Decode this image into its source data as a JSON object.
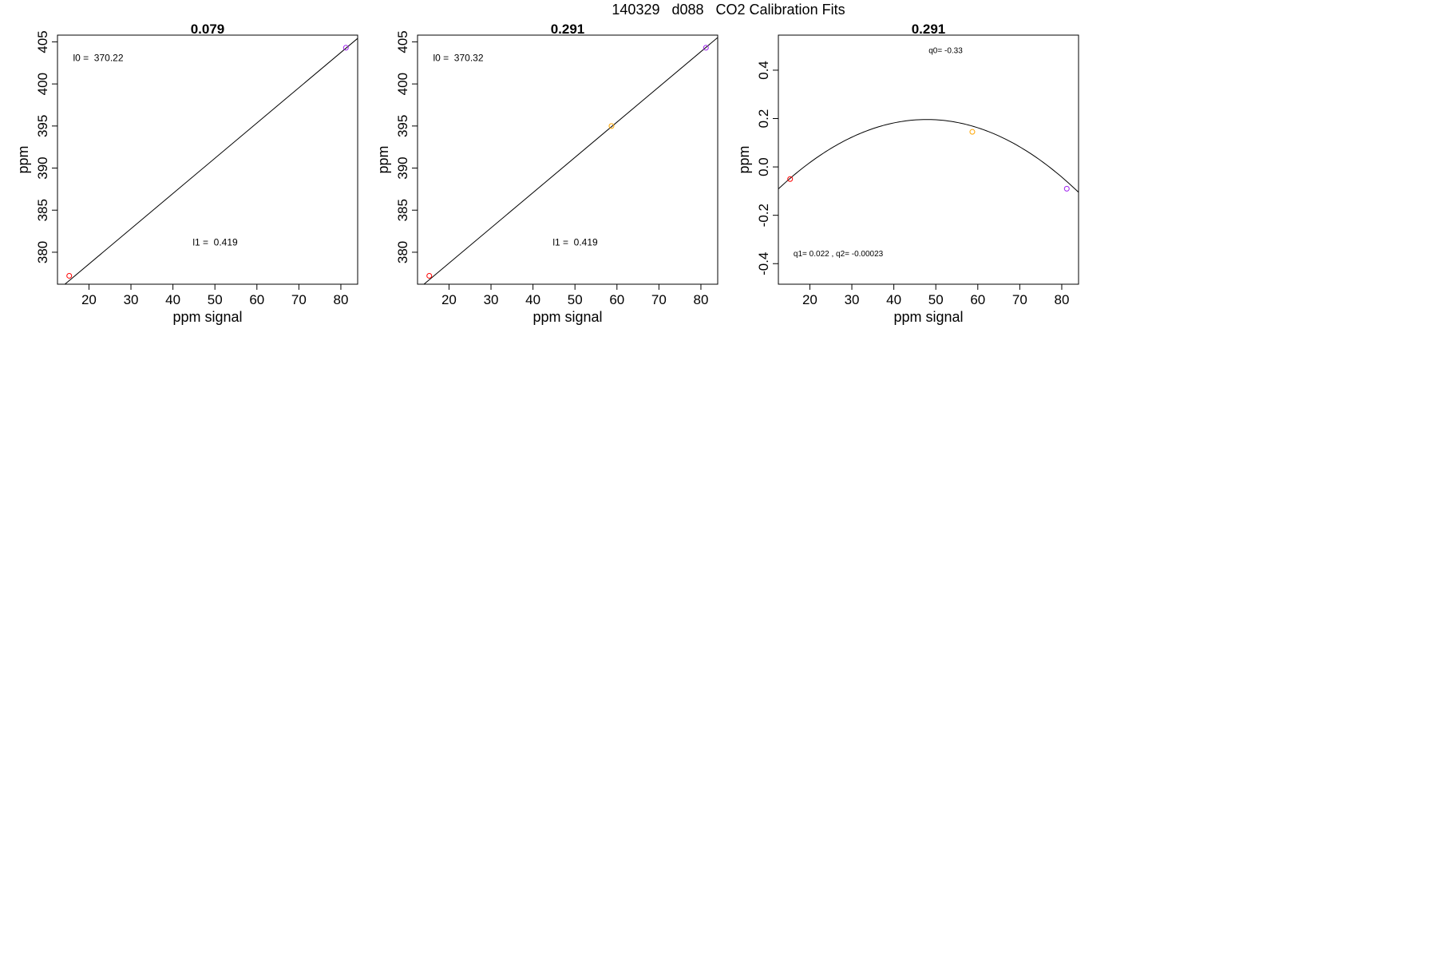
{
  "figure": {
    "title": "140329   d088   CO2 Calibration Fits"
  },
  "chart_data": [
    {
      "type": "line",
      "title": "0.079",
      "xlabel": "ppm signal",
      "ylabel": "ppm",
      "xlim": [
        12.5,
        84
      ],
      "ylim": [
        376.2,
        405.8
      ],
      "xticks": [
        20,
        30,
        40,
        50,
        60,
        70,
        80
      ],
      "yticks": [
        380,
        385,
        390,
        395,
        400,
        405
      ],
      "grid": false,
      "legend": "none",
      "fit": {
        "kind": "linear",
        "intercept": 370.22,
        "slope": 0.419
      },
      "series": [
        {
          "kind": "fit-line",
          "color": "#000000",
          "x": [
            12.5,
            84
          ]
        },
        {
          "kind": "points",
          "marker": "circle",
          "points": [
            {
              "x": 15.3,
              "y": 377.2,
              "color": "#ff0000"
            },
            {
              "x": 81.2,
              "y": 404.3,
              "color": "#a020f0"
            }
          ]
        }
      ],
      "annotations": [
        {
          "text": "l0 =  370.22",
          "x": 16.2,
          "y": 402.7,
          "size": "small"
        },
        {
          "text": "l1 =  0.419",
          "x": 44.7,
          "y": 380.8,
          "size": "small"
        }
      ]
    },
    {
      "type": "line",
      "title": "0.291",
      "xlabel": "ppm signal",
      "ylabel": "ppm",
      "xlim": [
        12.5,
        84
      ],
      "ylim": [
        376.2,
        405.8
      ],
      "xticks": [
        20,
        30,
        40,
        50,
        60,
        70,
        80
      ],
      "yticks": [
        380,
        385,
        390,
        395,
        400,
        405
      ],
      "grid": false,
      "legend": "none",
      "fit": {
        "kind": "linear",
        "intercept": 370.32,
        "slope": 0.419
      },
      "series": [
        {
          "kind": "fit-line",
          "color": "#000000",
          "x": [
            12.5,
            84
          ]
        },
        {
          "kind": "points",
          "marker": "circle",
          "points": [
            {
              "x": 15.3,
              "y": 377.2,
              "color": "#ff0000"
            },
            {
              "x": 58.7,
              "y": 395.0,
              "color": "#ffa500"
            },
            {
              "x": 81.2,
              "y": 404.3,
              "color": "#a020f0"
            }
          ]
        }
      ],
      "annotations": [
        {
          "text": "l0 =  370.32",
          "x": 16.2,
          "y": 402.7,
          "size": "small"
        },
        {
          "text": "l1 =  0.419",
          "x": 44.7,
          "y": 380.8,
          "size": "small"
        }
      ]
    },
    {
      "type": "line",
      "title": "0.291",
      "xlabel": "ppm signal",
      "ylabel": "ppm",
      "xlim": [
        12.5,
        84
      ],
      "ylim": [
        -0.485,
        0.545
      ],
      "xticks": [
        20,
        30,
        40,
        50,
        60,
        70,
        80
      ],
      "yticks": [
        -0.4,
        -0.2,
        0.0,
        0.2,
        0.4
      ],
      "grid": false,
      "legend": "none",
      "fit": {
        "kind": "quadratic",
        "q0": -0.33,
        "q1": 0.022,
        "q2": -0.00023
      },
      "series": [
        {
          "kind": "fit-curve",
          "color": "#000000",
          "x": [
            12.5,
            84
          ]
        },
        {
          "kind": "points",
          "marker": "circle",
          "points": [
            {
              "x": 15.3,
              "y": -0.05,
              "color": "#ff0000"
            },
            {
              "x": 58.7,
              "y": 0.145,
              "color": "#ffa500"
            },
            {
              "x": 81.2,
              "y": -0.09,
              "color": "#a020f0"
            }
          ]
        }
      ],
      "annotations": [
        {
          "text": "q0= -0.33",
          "x": 48.3,
          "y": 0.47,
          "size": "tiny"
        },
        {
          "text": "q1= 0.022 , q2= -0.00023",
          "x": 16.1,
          "y": -0.37,
          "size": "tiny"
        }
      ]
    }
  ]
}
